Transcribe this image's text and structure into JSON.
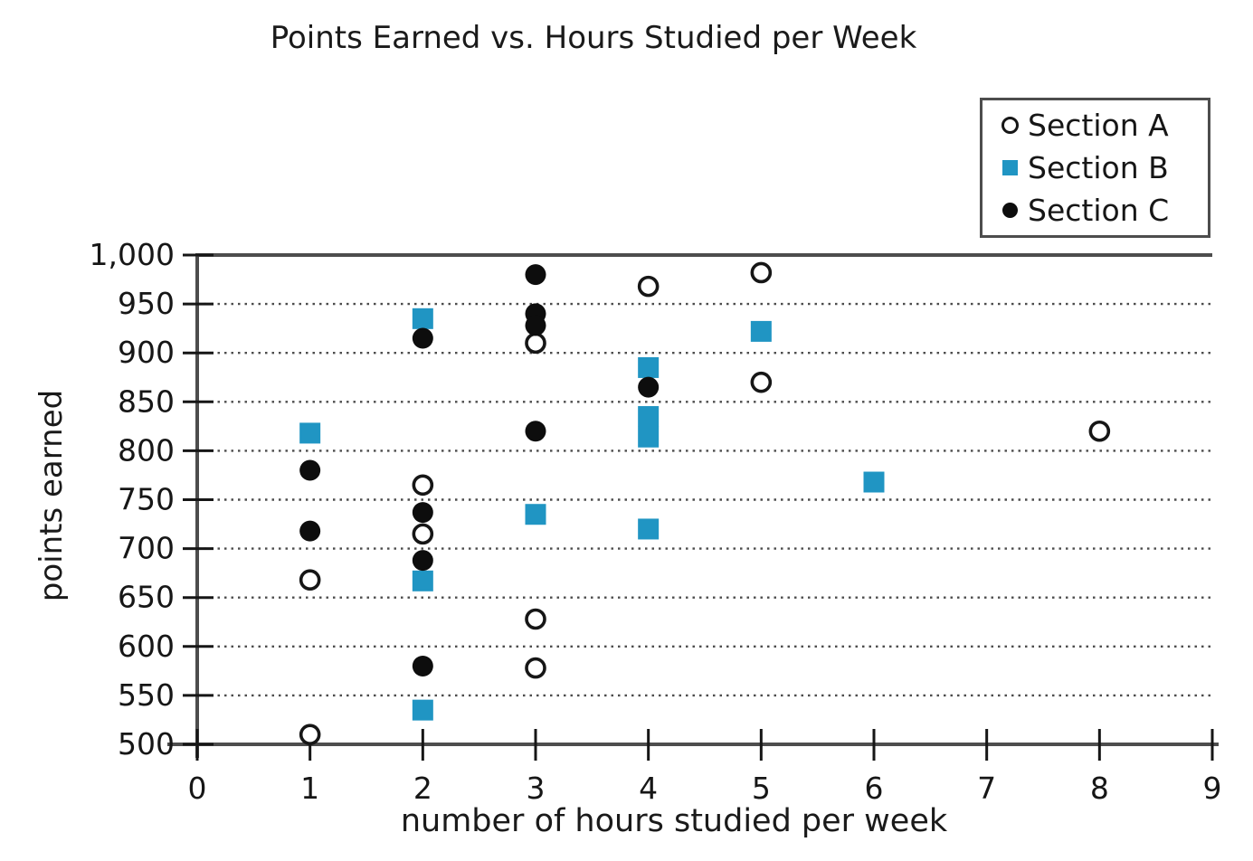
{
  "chart_data": {
    "type": "scatter",
    "title": "Points Earned vs. Hours Studied per Week",
    "xlabel": "number of hours studied per week",
    "ylabel": "points earned",
    "xlim": [
      0,
      9
    ],
    "ylim": [
      500,
      1000
    ],
    "x_ticks": [
      0,
      1,
      2,
      3,
      4,
      5,
      6,
      7,
      8,
      9
    ],
    "y_ticks": [
      500,
      550,
      600,
      650,
      700,
      750,
      800,
      850,
      900,
      950,
      1000
    ],
    "y_tick_labels": [
      "500",
      "550",
      "600",
      "650",
      "700",
      "750",
      "800",
      "850",
      "900",
      "950",
      "1,000"
    ],
    "grid": "horizontal dotted lines at each 50-point interval",
    "legend_position": "top-right",
    "series": [
      {
        "name": "Section A",
        "marker": "open-circle",
        "color": "#ffffff",
        "stroke": "#161616",
        "points": [
          [
            1,
            668
          ],
          [
            1,
            510
          ],
          [
            2,
            765
          ],
          [
            2,
            715
          ],
          [
            3,
            910
          ],
          [
            3,
            628
          ],
          [
            3,
            578
          ],
          [
            4,
            968
          ],
          [
            5,
            982
          ],
          [
            5,
            870
          ],
          [
            8,
            820
          ]
        ]
      },
      {
        "name": "Section B",
        "marker": "filled-square",
        "color": "#2095c3",
        "stroke": "#2095c3",
        "points": [
          [
            1,
            818
          ],
          [
            2,
            935
          ],
          [
            2,
            667
          ],
          [
            2,
            535
          ],
          [
            3,
            735
          ],
          [
            4,
            885
          ],
          [
            4,
            835
          ],
          [
            4,
            814
          ],
          [
            4,
            720
          ],
          [
            5,
            922
          ],
          [
            6,
            768
          ]
        ]
      },
      {
        "name": "Section C",
        "marker": "filled-circle",
        "color": "#0d0d0d",
        "stroke": "#0d0d0d",
        "points": [
          [
            1,
            780
          ],
          [
            1,
            718
          ],
          [
            2,
            915
          ],
          [
            2,
            737
          ],
          [
            2,
            688
          ],
          [
            2,
            580
          ],
          [
            3,
            980
          ],
          [
            3,
            940
          ],
          [
            3,
            928
          ],
          [
            3,
            820
          ],
          [
            4,
            865
          ]
        ]
      }
    ]
  },
  "colors": {
    "axis": "#4d4d4d",
    "tick": "#161616",
    "grid_dots": "#4c4c4c",
    "text": "#1a1a1a",
    "accent_blue": "#2095c3",
    "background": "#ffffff"
  }
}
